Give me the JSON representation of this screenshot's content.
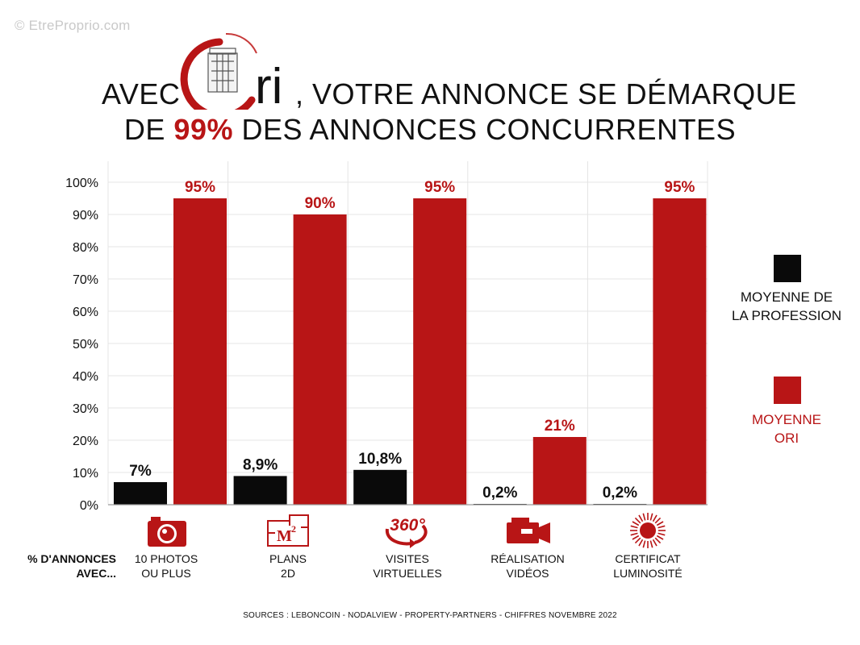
{
  "watermark": "© EtreProprio.com",
  "title": {
    "line1_prefix": "AVEC",
    "logo_text": "ri",
    "line1_suffix": ", VOTRE ANNONCE SE DÉMARQUE",
    "line2_prefix": "DE",
    "line2_highlight": "99%",
    "line2_suffix": "DES ANNONCES CONCURRENTES"
  },
  "colors": {
    "profession": "#0a0a0a",
    "ori": "#b81516",
    "grid": "#e4e4e4",
    "axis": "#9a9a9a"
  },
  "chart_data": {
    "type": "bar",
    "title": "AVEC ORI, VOTRE ANNONCE SE DÉMARQUE DE 99% DES ANNONCES CONCURRENTES",
    "categories": [
      "10 PHOTOS OU PLUS",
      "PLANS 2D",
      "VISITES VIRTUELLES",
      "RÉALISATION VIDÉOS",
      "CERTIFICAT LUMINOSITÉ"
    ],
    "series": [
      {
        "name": "MOYENNE DE LA PROFESSION",
        "values": [
          7,
          8.9,
          10.8,
          0.2,
          0.2
        ],
        "labels": [
          "7%",
          "8,9%",
          "10,8%",
          "0,2%",
          "0,2%"
        ]
      },
      {
        "name": "MOYENNE ORI",
        "values": [
          95,
          90,
          95,
          21,
          95
        ],
        "labels": [
          "95%",
          "90%",
          "95%",
          "21%",
          "95%"
        ]
      }
    ],
    "ylim": [
      0,
      100
    ],
    "yticks": [
      "0%",
      "10%",
      "20%",
      "30%",
      "40%",
      "50%",
      "60%",
      "70%",
      "80%",
      "90%",
      "100%"
    ],
    "grid": true,
    "legend": "right",
    "xlabel": "% D'ANNONCES AVEC...",
    "ylabel": ""
  },
  "legend": {
    "profession_line1": "MOYENNE DE",
    "profession_line2": "LA PROFESSION",
    "ori_line1": "MOYENNE",
    "ori_line2": "ORI"
  },
  "axis_row_label_line1": "% D'ANNONCES",
  "axis_row_label_line2": "AVEC...",
  "category_labels": [
    {
      "line1": "10 PHOTOS",
      "line2": "OU PLUS",
      "icon": "camera-icon"
    },
    {
      "line1": "PLANS",
      "line2": "2D",
      "icon": "floor-plan-icon"
    },
    {
      "line1": "VISITES",
      "line2": "VIRTUELLES",
      "icon": "360-icon"
    },
    {
      "line1": "RÉALISATION",
      "line2": "VIDÉOS",
      "icon": "video-camera-icon"
    },
    {
      "line1": "CERTIFICAT",
      "line2": "LUMINOSITÉ",
      "icon": "sun-icon"
    }
  ],
  "icon_text": {
    "m2_base": "M",
    "m2_exp": "2",
    "deg360": "360°"
  },
  "sources": "SOURCES :  LEBONCOIN - NODALVIEW - PROPERTY-PARTNERS - CHIFFRES NOVEMBRE 2022"
}
